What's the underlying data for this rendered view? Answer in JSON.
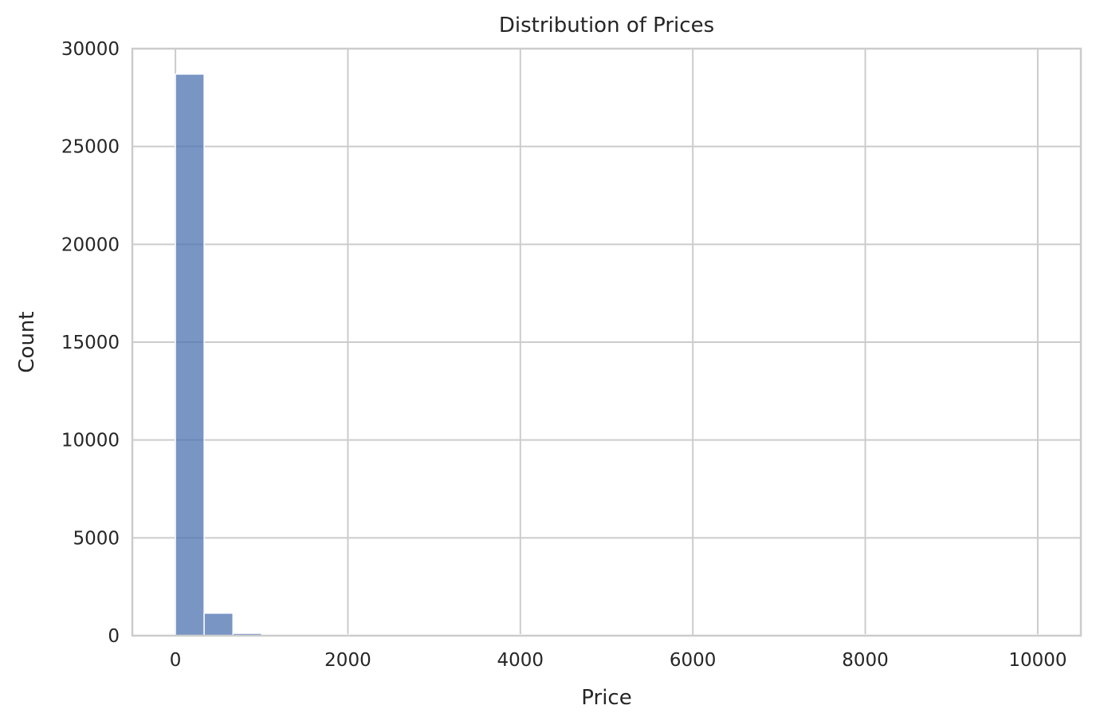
{
  "chart_data": {
    "type": "bar",
    "title": "Distribution of Prices",
    "xlabel": "Price",
    "ylabel": "Count",
    "xlim": [
      -500,
      10500
    ],
    "ylim": [
      0,
      30000
    ],
    "xticks": [
      0,
      2000,
      4000,
      6000,
      8000,
      10000
    ],
    "yticks": [
      0,
      5000,
      10000,
      15000,
      20000,
      25000,
      30000
    ],
    "grid": true,
    "bar_color": "#4c72b0",
    "bins": [
      {
        "x0": 0,
        "x1": 333,
        "count": 28700
      },
      {
        "x0": 333,
        "x1": 667,
        "count": 1150
      },
      {
        "x0": 667,
        "x1": 1000,
        "count": 120
      },
      {
        "x0": 1000,
        "x1": 1333,
        "count": 40
      },
      {
        "x0": 1333,
        "x1": 1667,
        "count": 20
      },
      {
        "x0": 1667,
        "x1": 2000,
        "count": 10
      },
      {
        "x0": 2000,
        "x1": 2333,
        "count": 5
      },
      {
        "x0": 2333,
        "x1": 2667,
        "count": 3
      },
      {
        "x0": 2667,
        "x1": 3000,
        "count": 3
      },
      {
        "x0": 3000,
        "x1": 3333,
        "count": 2
      },
      {
        "x0": 3333,
        "x1": 3667,
        "count": 1
      },
      {
        "x0": 3667,
        "x1": 4000,
        "count": 1
      },
      {
        "x0": 4000,
        "x1": 4333,
        "count": 1
      },
      {
        "x0": 4333,
        "x1": 4667,
        "count": 0
      },
      {
        "x0": 4667,
        "x1": 5000,
        "count": 1
      },
      {
        "x0": 5000,
        "x1": 5333,
        "count": 0
      },
      {
        "x0": 5333,
        "x1": 5667,
        "count": 0
      },
      {
        "x0": 5667,
        "x1": 6000,
        "count": 0
      },
      {
        "x0": 6000,
        "x1": 6333,
        "count": 0
      },
      {
        "x0": 6333,
        "x1": 6667,
        "count": 0
      },
      {
        "x0": 6667,
        "x1": 7000,
        "count": 0
      },
      {
        "x0": 7000,
        "x1": 7333,
        "count": 0
      },
      {
        "x0": 7333,
        "x1": 7667,
        "count": 0
      },
      {
        "x0": 7667,
        "x1": 8000,
        "count": 0
      },
      {
        "x0": 8000,
        "x1": 8333,
        "count": 1
      },
      {
        "x0": 8333,
        "x1": 8667,
        "count": 0
      },
      {
        "x0": 8667,
        "x1": 9000,
        "count": 0
      },
      {
        "x0": 9000,
        "x1": 9333,
        "count": 0
      },
      {
        "x0": 9333,
        "x1": 9667,
        "count": 0
      },
      {
        "x0": 9667,
        "x1": 10000,
        "count": 1
      }
    ]
  }
}
